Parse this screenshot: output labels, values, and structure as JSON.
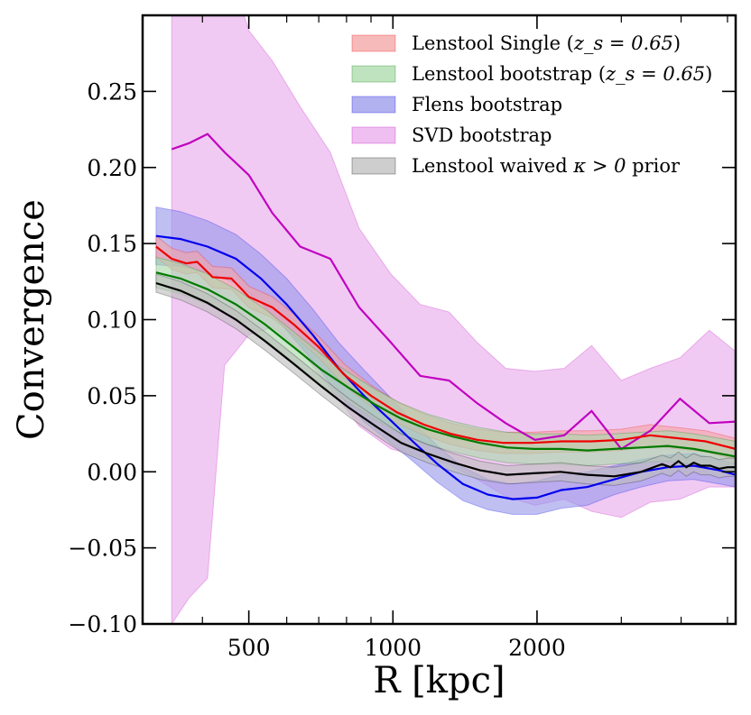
{
  "chart_data": {
    "type": "line",
    "xlabel": "R [kpc]",
    "ylabel": "Convergence",
    "xscale": "log",
    "xlim": [
      300,
      5200
    ],
    "ylim": [
      -0.1,
      0.3
    ],
    "x_tick_labels": [
      {
        "value": 500,
        "label": "500"
      },
      {
        "value": 1000,
        "label": "1000"
      },
      {
        "value": 2000,
        "label": "2000"
      }
    ],
    "y_tick_labels": [
      {
        "value": -0.1,
        "label": "−0.10"
      },
      {
        "value": -0.05,
        "label": "−0.05"
      },
      {
        "value": 0.0,
        "label": "0.00"
      },
      {
        "value": 0.05,
        "label": "0.05"
      },
      {
        "value": 0.1,
        "label": "0.10"
      },
      {
        "value": 0.15,
        "label": "0.15"
      },
      {
        "value": 0.2,
        "label": "0.20"
      },
      {
        "value": 0.25,
        "label": "0.25"
      }
    ],
    "legend_position": "top-right",
    "series": [
      {
        "name": "SVD bootstrap",
        "color": "#c000c0",
        "fill": "#e9a9ec",
        "x": [
          345,
          375,
          410,
          445,
          500,
          560,
          640,
          740,
          850,
          990,
          1140,
          1310,
          1500,
          1720,
          1980,
          2280,
          2600,
          3000,
          3450,
          3980,
          4580,
          5200
        ],
        "y": [
          0.212,
          0.216,
          0.222,
          0.21,
          0.195,
          0.17,
          0.148,
          0.14,
          0.108,
          0.085,
          0.063,
          0.06,
          0.045,
          0.032,
          0.021,
          0.024,
          0.04,
          0.015,
          0.027,
          0.048,
          0.032,
          0.033
        ],
        "upper": [
          0.36,
          0.36,
          0.36,
          0.34,
          0.29,
          0.27,
          0.24,
          0.21,
          0.16,
          0.13,
          0.11,
          0.105,
          0.085,
          0.068,
          0.066,
          0.068,
          0.083,
          0.06,
          0.068,
          0.075,
          0.093,
          0.079
        ],
        "lower": [
          -0.1,
          -0.083,
          -0.07,
          0.07,
          0.09,
          0.095,
          0.08,
          0.055,
          0.03,
          0.015,
          0.01,
          0.005,
          -0.005,
          -0.016,
          -0.022,
          -0.018,
          -0.026,
          -0.03,
          -0.02,
          -0.018,
          -0.01,
          -0.01
        ]
      },
      {
        "name": "Flens bootstrap",
        "color": "#0000ee",
        "fill": "#9797ea",
        "x": [
          320,
          360,
          410,
          470,
          530,
          600,
          680,
          770,
          870,
          980,
          1100,
          1240,
          1400,
          1580,
          1780,
          2000,
          2250,
          2550,
          2900,
          3300,
          3750,
          4250,
          4800,
          5200
        ],
        "y": [
          0.155,
          0.153,
          0.148,
          0.14,
          0.127,
          0.11,
          0.09,
          0.068,
          0.05,
          0.035,
          0.02,
          0.005,
          -0.008,
          -0.015,
          -0.018,
          -0.017,
          -0.012,
          -0.01,
          -0.005,
          0.0,
          0.003,
          0.004,
          0.001,
          -0.002
        ],
        "upper": [
          0.174,
          0.171,
          0.165,
          0.156,
          0.143,
          0.127,
          0.107,
          0.085,
          0.067,
          0.05,
          0.033,
          0.017,
          0.003,
          -0.005,
          -0.008,
          -0.006,
          -0.002,
          0.0,
          0.004,
          0.008,
          0.011,
          0.012,
          0.008,
          0.005
        ],
        "lower": [
          0.136,
          0.135,
          0.131,
          0.124,
          0.111,
          0.093,
          0.073,
          0.051,
          0.033,
          0.02,
          0.007,
          -0.007,
          -0.019,
          -0.025,
          -0.028,
          -0.028,
          -0.024,
          -0.022,
          -0.015,
          -0.01,
          -0.006,
          -0.005,
          -0.008,
          -0.01
        ]
      },
      {
        "name": "Lenstool Single (z_s = 0.65)",
        "color": "#ee0000",
        "fill": "#f4a3a3",
        "x": [
          320,
          345,
          370,
          390,
          420,
          460,
          500,
          560,
          620,
          700,
          790,
          900,
          1020,
          1160,
          1320,
          1500,
          1700,
          1950,
          2250,
          2600,
          3000,
          3450,
          3950,
          4500,
          5200
        ],
        "y": [
          0.148,
          0.14,
          0.137,
          0.138,
          0.128,
          0.127,
          0.115,
          0.108,
          0.097,
          0.082,
          0.064,
          0.05,
          0.039,
          0.031,
          0.025,
          0.021,
          0.019,
          0.019,
          0.02,
          0.02,
          0.021,
          0.024,
          0.022,
          0.02,
          0.015
        ],
        "upper": [
          0.155,
          0.147,
          0.144,
          0.145,
          0.135,
          0.134,
          0.122,
          0.115,
          0.104,
          0.089,
          0.071,
          0.057,
          0.046,
          0.038,
          0.032,
          0.028,
          0.026,
          0.026,
          0.027,
          0.027,
          0.028,
          0.031,
          0.029,
          0.027,
          0.022
        ],
        "lower": [
          0.141,
          0.133,
          0.13,
          0.131,
          0.121,
          0.12,
          0.108,
          0.101,
          0.09,
          0.075,
          0.057,
          0.043,
          0.032,
          0.024,
          0.018,
          0.014,
          0.012,
          0.012,
          0.013,
          0.013,
          0.014,
          0.017,
          0.015,
          0.013,
          0.008
        ]
      },
      {
        "name": "Lenstool bootstrap (z_s = 0.65)",
        "color": "#007a00",
        "fill": "#a9d9a9",
        "x": [
          320,
          360,
          410,
          470,
          540,
          620,
          710,
          810,
          920,
          1040,
          1180,
          1340,
          1520,
          1730,
          1970,
          2240,
          2550,
          2900,
          3300,
          3750,
          4250,
          4800,
          5200
        ],
        "y": [
          0.131,
          0.127,
          0.12,
          0.11,
          0.097,
          0.082,
          0.067,
          0.055,
          0.044,
          0.035,
          0.028,
          0.023,
          0.019,
          0.016,
          0.015,
          0.015,
          0.014,
          0.015,
          0.016,
          0.017,
          0.015,
          0.012,
          0.01
        ],
        "upper": [
          0.141,
          0.137,
          0.13,
          0.12,
          0.107,
          0.092,
          0.077,
          0.065,
          0.054,
          0.045,
          0.038,
          0.033,
          0.029,
          0.026,
          0.025,
          0.025,
          0.024,
          0.025,
          0.026,
          0.027,
          0.025,
          0.022,
          0.02
        ],
        "lower": [
          0.121,
          0.117,
          0.11,
          0.1,
          0.087,
          0.072,
          0.057,
          0.045,
          0.034,
          0.025,
          0.018,
          0.013,
          0.009,
          0.006,
          0.005,
          0.005,
          0.004,
          0.005,
          0.006,
          0.007,
          0.005,
          0.002,
          0.0
        ]
      },
      {
        "name": "Lenstool waived κ > 0 prior",
        "color": "#000000",
        "fill": "#bdbdbd",
        "x": [
          320,
          360,
          410,
          470,
          540,
          620,
          710,
          810,
          920,
          1040,
          1180,
          1340,
          1520,
          1730,
          1970,
          2240,
          2550,
          2900,
          3300,
          3650,
          3800,
          3950,
          4100,
          4250,
          4400,
          4600,
          4800,
          5000,
          5200
        ],
        "y": [
          0.124,
          0.119,
          0.111,
          0.1,
          0.086,
          0.071,
          0.056,
          0.042,
          0.03,
          0.019,
          0.012,
          0.006,
          0.001,
          -0.002,
          -0.001,
          0.0,
          -0.002,
          -0.003,
          0.0,
          0.005,
          0.003,
          0.007,
          0.003,
          0.006,
          0.004,
          0.004,
          0.002,
          0.003,
          0.003
        ],
        "upper": [
          0.13,
          0.125,
          0.117,
          0.106,
          0.092,
          0.077,
          0.062,
          0.048,
          0.036,
          0.025,
          0.018,
          0.012,
          0.007,
          0.004,
          0.005,
          0.006,
          0.004,
          0.003,
          0.006,
          0.011,
          0.009,
          0.013,
          0.009,
          0.012,
          0.01,
          0.01,
          0.008,
          0.009,
          0.009
        ],
        "lower": [
          0.118,
          0.113,
          0.105,
          0.094,
          0.08,
          0.065,
          0.05,
          0.036,
          0.024,
          0.013,
          0.006,
          0.0,
          -0.005,
          -0.008,
          -0.007,
          -0.006,
          -0.008,
          -0.009,
          -0.006,
          -0.001,
          -0.003,
          0.001,
          -0.003,
          0.0,
          -0.002,
          -0.002,
          -0.004,
          -0.003,
          -0.003
        ]
      }
    ]
  },
  "legend": [
    {
      "label": "Lenstool Single (",
      "math": "z_s = 0.65",
      "suffix": ")",
      "fill": "#f4a3a3",
      "edge": "#ee0000"
    },
    {
      "label": "Lenstool bootstrap (",
      "math": "z_s = 0.65",
      "suffix": ")",
      "fill": "#a9d9a9",
      "edge": "#007a00"
    },
    {
      "label": "Flens bootstrap",
      "math": "",
      "suffix": "",
      "fill": "#9797ea",
      "edge": "#0000ee"
    },
    {
      "label": "SVD bootstrap",
      "math": "",
      "suffix": "",
      "fill": "#e9a9ec",
      "edge": "#c000c0"
    },
    {
      "label": "Lenstool waived ",
      "math": "κ > 0",
      "suffix": " prior",
      "fill": "#bdbdbd",
      "edge": "#000000"
    }
  ]
}
